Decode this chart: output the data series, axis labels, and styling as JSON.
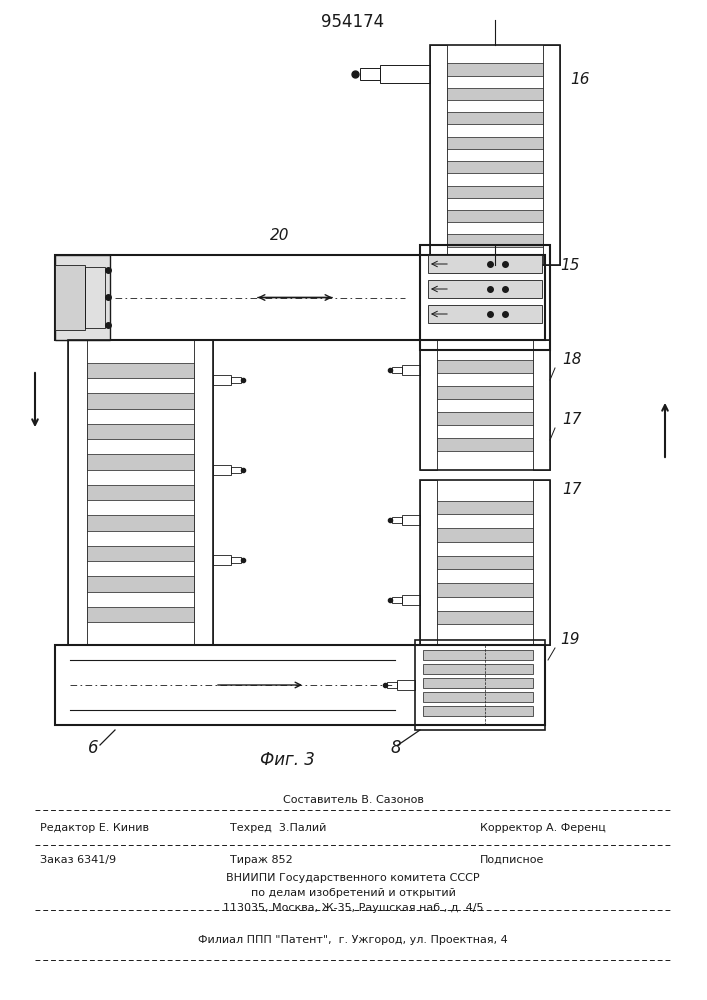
{
  "patent_number": "954174",
  "figure_label": "Фиг. 3",
  "bg_color": "#ffffff",
  "line_color": "#1a1a1a",
  "gray_fill": "#c8c8c8",
  "light_gray": "#e0e0e0",
  "footer": {
    "sostavitel": "Составитель В. Сазонов",
    "redaktor": "Редактор Е. Кинив",
    "tehred": "Техред  3.Палий",
    "korrektor": "Корректор А. Ференц",
    "zakaz": "Заказ 6341/9",
    "tirazh": "Тираж 852",
    "podpisnoe": "Подписное",
    "vniipи": "ВНИИПИ Государственного комитета СССР",
    "pо_delam": "по делам изобретений и открытий",
    "address": "113035, Москва, Ж-35, Раушская наб., д. 4/5",
    "filial": "Филиал ППП \"Патент\",  г. Ужгород, ул. Проектная, 4"
  }
}
